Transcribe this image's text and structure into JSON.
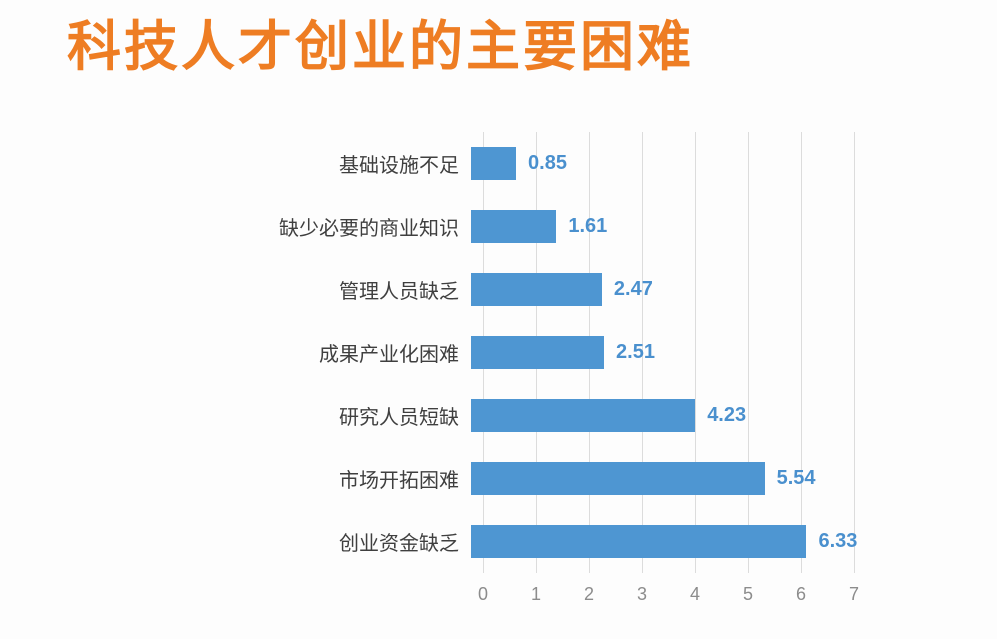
{
  "title": "科技人才创业的主要困难",
  "chart_data": {
    "type": "bar",
    "orientation": "horizontal",
    "title": "科技人才创业的主要困难",
    "categories": [
      "基础设施不足",
      "缺少必要的商业知识",
      "管理人员缺乏",
      "成果产业化困难",
      "研究人员短缺",
      "市场开拓困难",
      "创业资金缺乏"
    ],
    "values": [
      0.85,
      1.61,
      2.47,
      2.51,
      4.23,
      5.54,
      6.33
    ],
    "value_labels": [
      "0.85",
      "1.61",
      "2.47",
      "2.51",
      "4.23",
      "5.54",
      "6.33"
    ],
    "xlabel": "",
    "ylabel": "",
    "xlim": [
      0,
      7
    ],
    "x_ticks": [
      "0",
      "1",
      "2",
      "3",
      "4",
      "5",
      "6",
      "7"
    ],
    "grid": "vertical",
    "legend": "none",
    "colors": {
      "title": "#ee7d23",
      "bar": "#4e96d2",
      "value_label": "#4a90ce",
      "category_label": "#3f3f3f",
      "tick_label": "#8c8c8c",
      "gridline": "#dcdcdc",
      "background": "#fdfdfd"
    }
  }
}
